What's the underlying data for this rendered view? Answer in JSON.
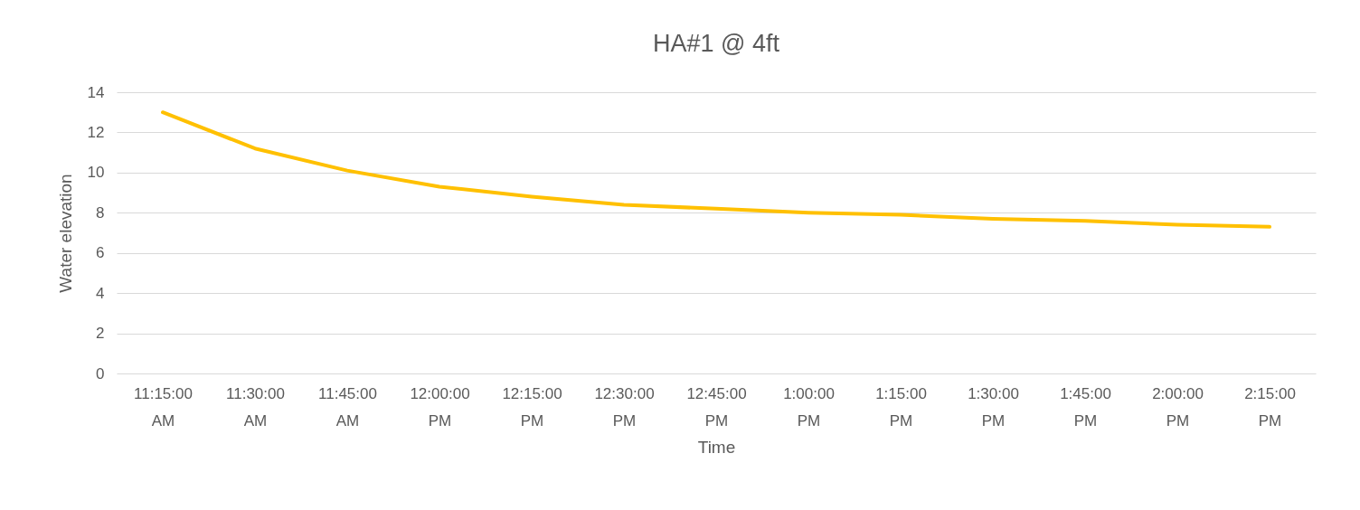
{
  "chart_data": {
    "type": "line",
    "title": "HA#1 @ 4ft",
    "xlabel": "Time",
    "ylabel": "Water elevation",
    "categories": [
      "11:15:00 AM",
      "11:30:00 AM",
      "11:45:00 AM",
      "12:00:00 PM",
      "12:15:00 PM",
      "12:30:00 PM",
      "12:45:00 PM",
      "1:00:00 PM",
      "1:15:00 PM",
      "1:30:00 PM",
      "1:45:00 PM",
      "2:00:00 PM",
      "2:15:00 PM"
    ],
    "series": [
      {
        "color": "#ffc000",
        "values": [
          13.0,
          11.2,
          10.1,
          9.3,
          8.8,
          8.4,
          8.2,
          8.0,
          7.9,
          7.7,
          7.6,
          7.4,
          7.3
        ]
      }
    ],
    "ylim": [
      0,
      14
    ],
    "yticks": [
      0,
      2,
      4,
      6,
      8,
      10,
      12,
      14
    ],
    "grid": "y",
    "marker": "none",
    "line_style": "solid"
  }
}
